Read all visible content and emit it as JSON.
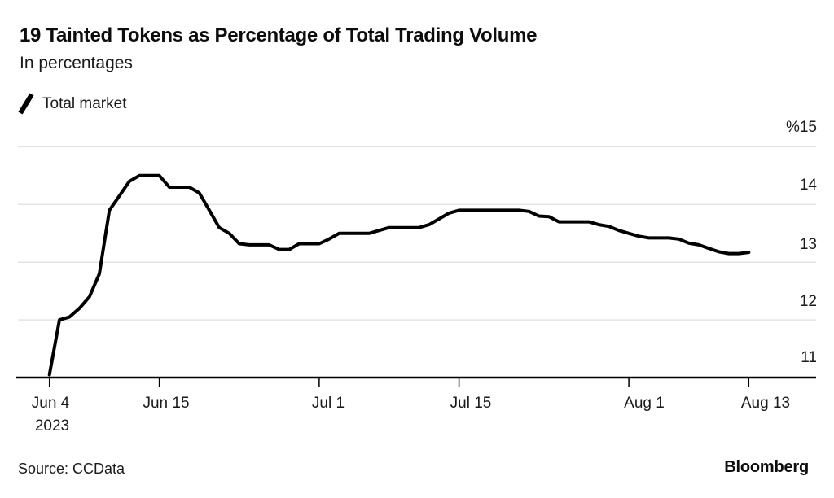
{
  "header": {
    "title": "19 Tainted Tokens as Percentage of Total Trading Volume",
    "subtitle": "In percentages"
  },
  "legend": {
    "items": [
      {
        "label": "Total market",
        "swatch": "slash-mark",
        "color": "#000000"
      }
    ]
  },
  "theme": {
    "line_color": "#000000",
    "grid_color": "#e3e3e3",
    "axis_color": "#000000",
    "text_color": "#1a1a1a",
    "background": "#ffffff"
  },
  "chart_data": {
    "type": "line",
    "title": "19 Tainted Tokens as Percentage of Total Trading Volume",
    "subtitle": "In percentages",
    "xlabel": "",
    "ylabel": "%",
    "grid": "horizontal",
    "legend_position": "top-left",
    "x_unit": "days since Jun 4 2023",
    "x_range_days": [
      0,
      70
    ],
    "ylim": [
      11,
      15.3
    ],
    "y_ticks": [
      {
        "value": 15,
        "label": "%15"
      },
      {
        "value": 14,
        "label": "14"
      },
      {
        "value": 13,
        "label": "13"
      },
      {
        "value": 12,
        "label": "12"
      },
      {
        "value": 11,
        "label": "11"
      }
    ],
    "x_ticks": [
      {
        "day": 0,
        "label": "Jun 4",
        "sublabel": "2023"
      },
      {
        "day": 11,
        "label": "Jun 15"
      },
      {
        "day": 27,
        "label": "Jul 1"
      },
      {
        "day": 41,
        "label": "Jul 15"
      },
      {
        "day": 58,
        "label": "Aug 1"
      },
      {
        "day": 70,
        "label": "Aug 13"
      }
    ],
    "series": [
      {
        "name": "Total market",
        "color": "#000000",
        "start_date": "2023-06-04",
        "end_date": "2023-08-13",
        "values": [
          11.05,
          12.0,
          12.05,
          12.2,
          12.4,
          12.8,
          13.9,
          14.15,
          14.4,
          14.5,
          14.5,
          14.5,
          14.3,
          14.3,
          14.3,
          14.2,
          13.9,
          13.6,
          13.5,
          13.32,
          13.3,
          13.3,
          13.3,
          13.22,
          13.22,
          13.32,
          13.32,
          13.32,
          13.4,
          13.5,
          13.5,
          13.5,
          13.5,
          13.55,
          13.6,
          13.6,
          13.6,
          13.6,
          13.65,
          13.75,
          13.85,
          13.9,
          13.9,
          13.9,
          13.9,
          13.9,
          13.9,
          13.9,
          13.88,
          13.8,
          13.79,
          13.7,
          13.7,
          13.7,
          13.7,
          13.65,
          13.62,
          13.55,
          13.5,
          13.45,
          13.42,
          13.42,
          13.42,
          13.4,
          13.33,
          13.3,
          13.24,
          13.18,
          13.15,
          13.15,
          13.17
        ]
      }
    ]
  },
  "footer": {
    "source": "Source: CCData",
    "brand": "Bloomberg"
  }
}
